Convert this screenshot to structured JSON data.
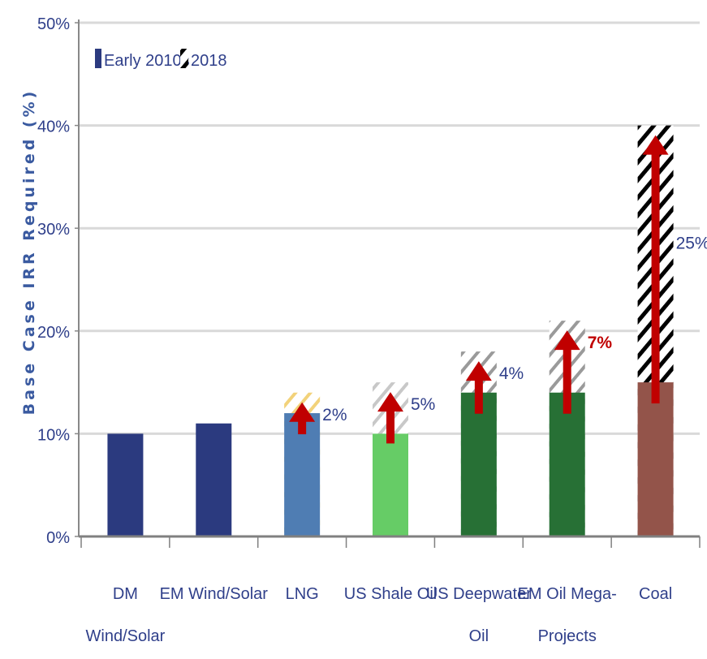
{
  "chart_data": {
    "type": "bar",
    "ylabel": "Base Case IRR Required (%)",
    "ylim": [
      0,
      50
    ],
    "yticks": [
      0,
      10,
      20,
      30,
      40,
      50
    ],
    "ytick_labels": [
      "0%",
      "10%",
      "20%",
      "30%",
      "40%",
      "50%"
    ],
    "grid": true,
    "legend": {
      "placement": "top-left",
      "entries": [
        {
          "name": "Early 2010s",
          "color": "#2b3a7f"
        },
        {
          "name": "2018",
          "color": "#000000"
        }
      ]
    },
    "categories": [
      {
        "lines": [
          "DM",
          "Wind/Solar"
        ],
        "early": 10,
        "y2018": null,
        "increase_label": "",
        "bar_color": "#2b3a7f",
        "hatch_color": "",
        "label_red": false
      },
      {
        "lines": [
          "EM Wind/Solar"
        ],
        "early": 11,
        "y2018": null,
        "increase_label": "",
        "bar_color": "#2b3a7f",
        "hatch_color": "",
        "label_red": false
      },
      {
        "lines": [
          "LNG"
        ],
        "early": 12,
        "y2018": 14,
        "increase_label": "2%",
        "bar_color": "#4f7db3",
        "hatch_color": "#f2d27a",
        "label_red": false
      },
      {
        "lines": [
          "US Shale Oil"
        ],
        "early": 10,
        "y2018": 15,
        "increase_label": "5%",
        "bar_color": "#66cc66",
        "hatch_color": "#c8c8c8",
        "label_red": false
      },
      {
        "lines": [
          "US Deepwater",
          "Oil"
        ],
        "early": 14,
        "y2018": 18,
        "increase_label": "4%",
        "bar_color": "#277035",
        "hatch_color": "#9a9a9a",
        "label_red": false
      },
      {
        "lines": [
          "EM Oil Mega-",
          "Projects"
        ],
        "early": 14,
        "y2018": 21,
        "increase_label": "7%",
        "bar_color": "#277035",
        "hatch_color": "#9a9a9a",
        "label_red": true
      },
      {
        "lines": [
          "Coal"
        ],
        "early": 15,
        "y2018": 40,
        "increase_label": "25%",
        "bar_color": "#93544a",
        "hatch_color": "#000000",
        "label_red": false
      }
    ],
    "arrow_color": "#c00000"
  }
}
